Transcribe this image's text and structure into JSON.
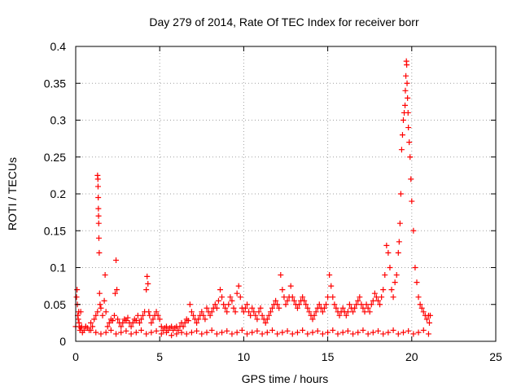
{
  "chart_data": {
    "type": "scatter",
    "title": "Day 279 of 2014, Rate Of TEC Index for receiver borr",
    "xlabel": "GPS time / hours",
    "ylabel": "ROTI / TECUs",
    "xlim": [
      0,
      25
    ],
    "ylim": [
      0,
      0.4
    ],
    "xticks": [
      0,
      5,
      10,
      15,
      20,
      25
    ],
    "xtick_labels": [
      "0",
      "5",
      "10",
      "15",
      "20",
      "25"
    ],
    "yticks": [
      0,
      0.05,
      0.1,
      0.15,
      0.2,
      0.25,
      0.3,
      0.35,
      0.4
    ],
    "ytick_labels": [
      "0",
      "0.05",
      "0.1",
      "0.15",
      "0.2",
      "0.25",
      "0.3",
      "0.35",
      "0.4"
    ],
    "grid": true,
    "marker": "+",
    "marker_color": "#ff0000",
    "series": [
      {
        "name": "ROTI",
        "x": [
          0.0,
          0.05,
          0.08,
          0.1,
          0.12,
          0.15,
          0.18,
          0.2,
          0.22,
          0.25,
          0.3,
          0.35,
          0.4,
          0.5,
          0.6,
          0.7,
          0.8,
          0.9,
          1.0,
          1.1,
          1.2,
          1.3,
          1.3,
          1.32,
          1.33,
          1.34,
          1.35,
          1.36,
          1.37,
          1.38,
          1.4,
          1.42,
          1.45,
          1.5,
          1.6,
          1.7,
          1.75,
          1.8,
          1.9,
          2.0,
          2.1,
          2.2,
          2.3,
          2.35,
          2.4,
          2.45,
          2.5,
          2.6,
          2.7,
          2.8,
          2.9,
          3.0,
          3.1,
          3.2,
          3.3,
          3.4,
          3.5,
          3.6,
          3.7,
          3.8,
          3.9,
          4.0,
          4.1,
          4.2,
          4.25,
          4.3,
          4.35,
          4.4,
          4.5,
          4.6,
          4.7,
          4.8,
          4.9,
          5.0,
          5.1,
          5.2,
          5.3,
          5.4,
          5.5,
          5.6,
          5.7,
          5.8,
          5.9,
          6.0,
          6.1,
          6.2,
          6.3,
          6.4,
          6.5,
          6.6,
          6.7,
          6.8,
          6.9,
          7.0,
          7.1,
          7.2,
          7.3,
          7.4,
          7.5,
          7.6,
          7.7,
          7.8,
          7.9,
          8.0,
          8.1,
          8.2,
          8.3,
          8.4,
          8.5,
          8.6,
          8.7,
          8.8,
          8.9,
          9.0,
          9.1,
          9.2,
          9.3,
          9.4,
          9.5,
          9.6,
          9.7,
          9.8,
          9.9,
          10.0,
          10.1,
          10.2,
          10.3,
          10.4,
          10.5,
          10.6,
          10.7,
          10.8,
          10.9,
          11.0,
          11.1,
          11.2,
          11.3,
          11.4,
          11.5,
          11.6,
          11.7,
          11.8,
          11.9,
          12.0,
          12.1,
          12.2,
          12.3,
          12.4,
          12.5,
          12.6,
          12.7,
          12.8,
          12.9,
          13.0,
          13.1,
          13.2,
          13.3,
          13.4,
          13.5,
          13.6,
          13.7,
          13.8,
          13.9,
          14.0,
          14.1,
          14.2,
          14.3,
          14.4,
          14.5,
          14.6,
          14.7,
          14.8,
          14.9,
          15.0,
          15.1,
          15.2,
          15.3,
          15.4,
          15.5,
          15.6,
          15.7,
          15.8,
          15.9,
          16.0,
          16.1,
          16.2,
          16.3,
          16.4,
          16.5,
          16.6,
          16.7,
          16.8,
          16.9,
          17.0,
          17.1,
          17.2,
          17.3,
          17.4,
          17.5,
          17.6,
          17.7,
          17.8,
          17.9,
          18.0,
          18.1,
          18.2,
          18.3,
          18.4,
          18.5,
          18.6,
          18.7,
          18.8,
          18.9,
          19.0,
          19.1,
          19.2,
          19.25,
          19.3,
          19.35,
          19.4,
          19.45,
          19.5,
          19.55,
          19.6,
          19.62,
          19.65,
          19.68,
          19.7,
          19.72,
          19.75,
          19.78,
          19.8,
          19.85,
          19.9,
          19.95,
          20.0,
          20.1,
          20.2,
          20.3,
          20.4,
          20.5,
          20.6,
          20.7,
          20.8,
          20.9,
          21.0,
          21.05,
          21.1,
          0.3,
          0.6,
          0.9,
          1.2,
          1.5,
          1.8,
          2.1,
          2.4,
          2.7,
          3.0,
          3.3,
          3.6,
          3.9,
          4.2,
          4.5,
          4.8,
          5.1,
          5.4,
          5.7,
          6.0,
          6.3,
          6.6,
          6.9,
          7.2,
          7.5,
          7.8,
          8.1,
          8.4,
          8.7,
          9.0,
          9.3,
          9.6,
          9.9,
          10.2,
          10.5,
          10.8,
          11.1,
          11.4,
          11.7,
          12.0,
          12.3,
          12.6,
          12.9,
          13.2,
          13.5,
          13.8,
          14.1,
          14.4,
          14.7,
          15.0,
          15.3,
          15.6,
          15.9,
          16.2,
          16.5,
          16.8,
          17.1,
          17.4,
          17.7,
          18.0,
          18.3,
          18.6,
          18.9,
          19.2,
          19.5,
          19.8,
          20.1,
          20.4,
          20.7,
          21.0
        ],
        "y": [
          0.02,
          0.06,
          0.07,
          0.05,
          0.035,
          0.03,
          0.04,
          0.025,
          0.02,
          0.015,
          0.018,
          0.02,
          0.012,
          0.015,
          0.02,
          0.018,
          0.015,
          0.025,
          0.02,
          0.03,
          0.035,
          0.04,
          0.225,
          0.22,
          0.21,
          0.195,
          0.18,
          0.17,
          0.16,
          0.14,
          0.12,
          0.065,
          0.05,
          0.045,
          0.035,
          0.055,
          0.09,
          0.04,
          0.02,
          0.025,
          0.03,
          0.028,
          0.035,
          0.065,
          0.11,
          0.07,
          0.03,
          0.025,
          0.02,
          0.025,
          0.03,
          0.028,
          0.032,
          0.025,
          0.02,
          0.025,
          0.03,
          0.028,
          0.035,
          0.025,
          0.03,
          0.035,
          0.04,
          0.07,
          0.088,
          0.078,
          0.04,
          0.035,
          0.025,
          0.03,
          0.035,
          0.04,
          0.035,
          0.03,
          0.02,
          0.015,
          0.018,
          0.02,
          0.015,
          0.018,
          0.02,
          0.015,
          0.018,
          0.02,
          0.015,
          0.02,
          0.025,
          0.02,
          0.025,
          0.03,
          0.028,
          0.05,
          0.04,
          0.035,
          0.03,
          0.025,
          0.03,
          0.035,
          0.04,
          0.035,
          0.03,
          0.045,
          0.04,
          0.035,
          0.04,
          0.045,
          0.05,
          0.045,
          0.055,
          0.07,
          0.06,
          0.05,
          0.045,
          0.04,
          0.05,
          0.06,
          0.055,
          0.045,
          0.04,
          0.065,
          0.075,
          0.06,
          0.045,
          0.04,
          0.045,
          0.05,
          0.04,
          0.035,
          0.045,
          0.04,
          0.035,
          0.03,
          0.04,
          0.045,
          0.035,
          0.03,
          0.025,
          0.03,
          0.035,
          0.04,
          0.045,
          0.05,
          0.055,
          0.05,
          0.045,
          0.09,
          0.07,
          0.06,
          0.05,
          0.055,
          0.06,
          0.075,
          0.06,
          0.055,
          0.05,
          0.045,
          0.05,
          0.055,
          0.06,
          0.055,
          0.05,
          0.045,
          0.04,
          0.035,
          0.03,
          0.035,
          0.04,
          0.045,
          0.05,
          0.045,
          0.04,
          0.045,
          0.05,
          0.06,
          0.09,
          0.075,
          0.06,
          0.05,
          0.045,
          0.04,
          0.035,
          0.04,
          0.045,
          0.04,
          0.035,
          0.04,
          0.05,
          0.045,
          0.04,
          0.045,
          0.05,
          0.055,
          0.06,
          0.05,
          0.045,
          0.04,
          0.05,
          0.045,
          0.04,
          0.05,
          0.055,
          0.065,
          0.06,
          0.055,
          0.05,
          0.06,
          0.07,
          0.09,
          0.13,
          0.12,
          0.1,
          0.07,
          0.06,
          0.08,
          0.09,
          0.12,
          0.135,
          0.16,
          0.2,
          0.26,
          0.28,
          0.3,
          0.31,
          0.32,
          0.34,
          0.36,
          0.38,
          0.375,
          0.35,
          0.33,
          0.31,
          0.29,
          0.27,
          0.25,
          0.22,
          0.19,
          0.15,
          0.1,
          0.08,
          0.06,
          0.05,
          0.045,
          0.04,
          0.035,
          0.03,
          0.035,
          0.025,
          0.035,
          0.04,
          0.02,
          0.015,
          0.012,
          0.01,
          0.012,
          0.015,
          0.01,
          0.012,
          0.014,
          0.01,
          0.012,
          0.015,
          0.01,
          0.012,
          0.014,
          0.01,
          0.012,
          0.008,
          0.01,
          0.012,
          0.01,
          0.012,
          0.014,
          0.01,
          0.012,
          0.015,
          0.01,
          0.012,
          0.014,
          0.01,
          0.012,
          0.015,
          0.01,
          0.012,
          0.014,
          0.01,
          0.012,
          0.015,
          0.01,
          0.012,
          0.014,
          0.01,
          0.012,
          0.015,
          0.01,
          0.012,
          0.014,
          0.01,
          0.012,
          0.015,
          0.01,
          0.012,
          0.014,
          0.01,
          0.012,
          0.015,
          0.01,
          0.012,
          0.014,
          0.01,
          0.012,
          0.015,
          0.01,
          0.012,
          0.014,
          0.01,
          0.012,
          0.015,
          0.01
        ]
      }
    ]
  }
}
